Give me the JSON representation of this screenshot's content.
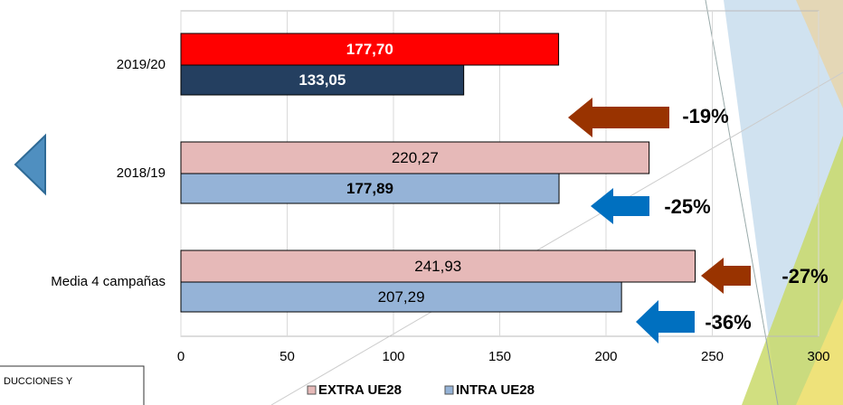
{
  "chart_data": {
    "type": "hbar",
    "categories": [
      "2019/20",
      "2018/19",
      "Media 4 campañas"
    ],
    "series": [
      {
        "name": "EXTRA UE28",
        "color": "#e6b9b8",
        "colors": [
          "#ff0000",
          "#e6b9b8",
          "#e6b9b8"
        ],
        "values": [
          177.7,
          220.27,
          241.93
        ],
        "value_labels": [
          "177,70",
          "220,27",
          "241,93"
        ]
      },
      {
        "name": "INTRA UE28",
        "color": "#95b3d7",
        "colors": [
          "#243f60",
          "#95b3d7",
          "#95b3d7"
        ],
        "values": [
          133.05,
          177.89,
          207.29
        ],
        "value_labels": [
          "133,05",
          "177,89",
          "207,29"
        ]
      }
    ],
    "xlim": [
      0,
      300
    ],
    "xticks": [
      0,
      50,
      100,
      150,
      200,
      250,
      300
    ],
    "grid": true,
    "annotations": [
      "-19%",
      "-25%",
      "-27%",
      "-36%"
    ],
    "note": "DUCCIONES Y"
  }
}
